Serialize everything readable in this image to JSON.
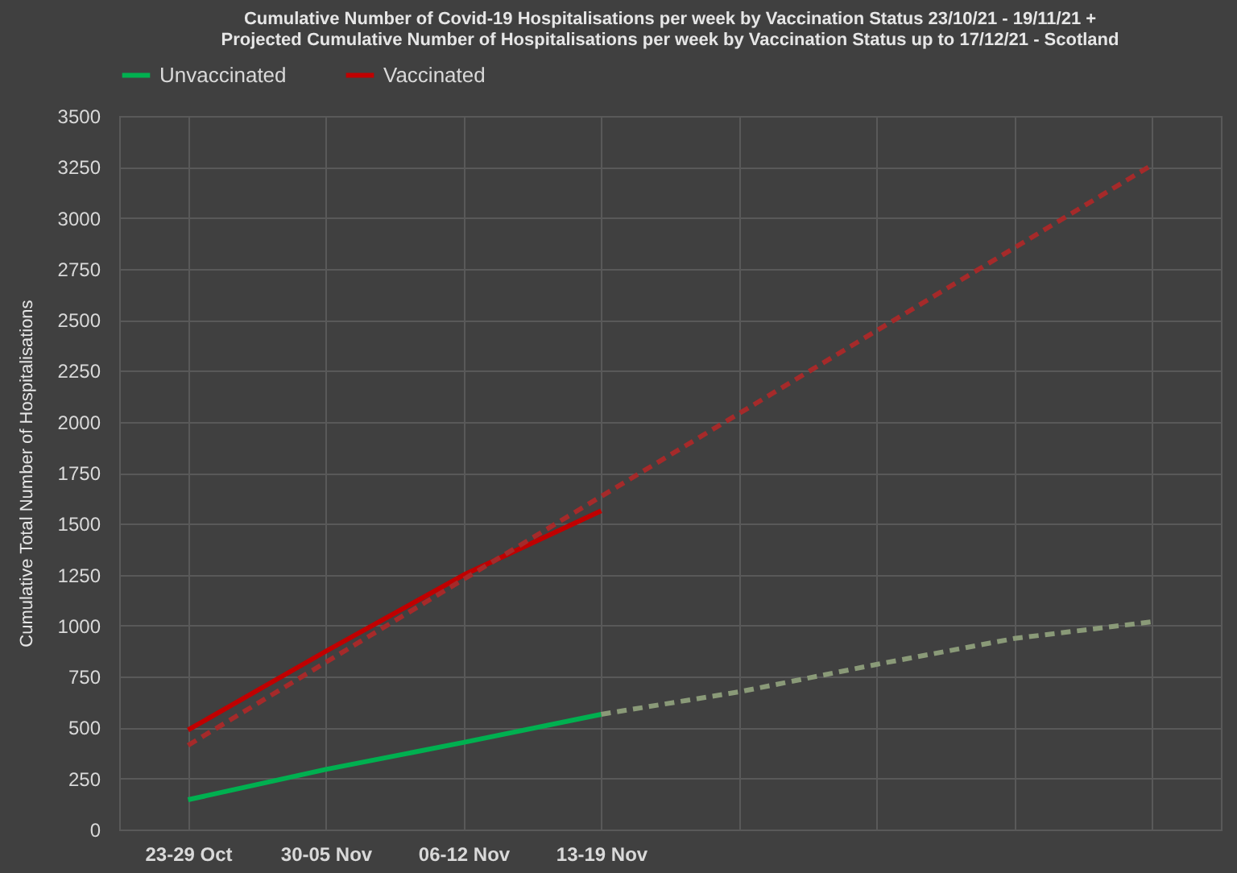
{
  "chart_data": {
    "type": "line",
    "title": [
      "Cumulative Number of Covid-19 Hospitalisations  per week by Vaccination  Status 23/10/21 - 19/11/21 +",
      "Projected Cumulative Number of Hospitalisations  per week by Vaccination  Status up to 17/12/21 - Scotland"
    ],
    "ylabel": "Cumulative Total Number of Hospitalisations",
    "categories": [
      "23-29 Oct",
      "30-05 Nov",
      "06-12 Nov",
      "13-19 Nov",
      null,
      null,
      null,
      null
    ],
    "series": [
      {
        "name": "Unvaccinated",
        "color": "#00b050",
        "values": [
          146,
          295,
          427,
          565,
          null,
          null,
          null,
          null
        ]
      },
      {
        "name": "Vaccinated",
        "color": "#c00000",
        "values": [
          488,
          874,
          1248,
          1563,
          null,
          null,
          null,
          null
        ]
      },
      {
        "color": "#a52a2a",
        "line_style": "dashed",
        "values": [
          413,
          820,
          1227,
          1634,
          2040,
          2447,
          2853,
          3260
        ]
      },
      {
        "color": "#8a9a78",
        "line_style": "dashed",
        "values": [
          null,
          null,
          null,
          565,
          675,
          810,
          937,
          1019
        ]
      }
    ],
    "ylim": [
      0,
      3500
    ],
    "yticks": [
      0,
      250,
      500,
      750,
      1000,
      1250,
      1500,
      1750,
      2000,
      2250,
      2500,
      2750,
      3000,
      3250,
      3500
    ],
    "grid": true,
    "legend": "top",
    "line_style": "solid",
    "marker": "none"
  }
}
